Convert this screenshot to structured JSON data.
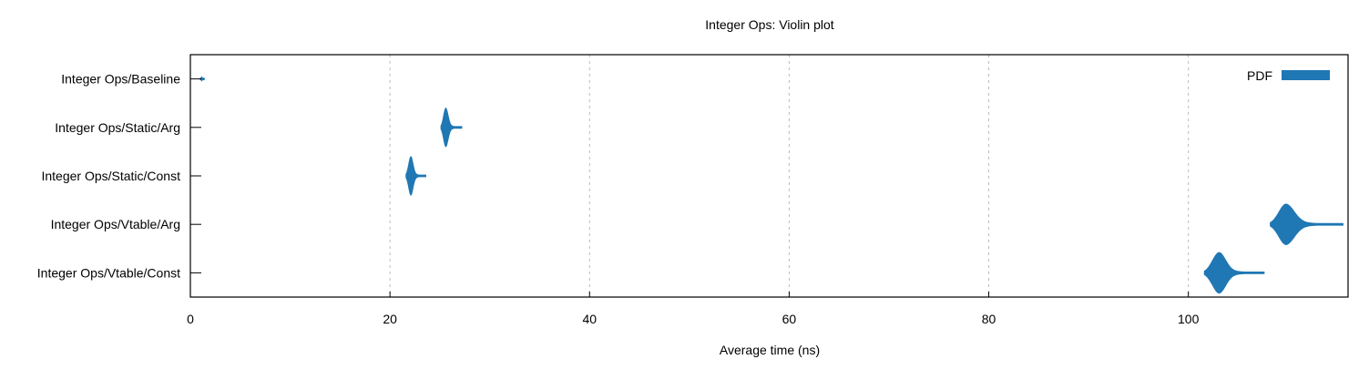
{
  "chart_data": {
    "type": "violin",
    "title": "Integer Ops: Violin plot",
    "xlabel": "Average time (ns)",
    "ylabel": "",
    "xlim": [
      0,
      116
    ],
    "xticks": [
      0,
      20,
      40,
      60,
      80,
      100
    ],
    "grid": {
      "x": true,
      "y": false,
      "style": "dashed"
    },
    "legend": {
      "position": "top-right",
      "entries": [
        "PDF"
      ]
    },
    "series_color": "#1f77b4",
    "categories": [
      "Integer Ops/Baseline",
      "Integer Ops/Static/Arg",
      "Integer Ops/Static/Const",
      "Integer Ops/Vtable/Arg",
      "Integer Ops/Vtable/Const"
    ],
    "distributions": [
      {
        "name": "Integer Ops/Baseline",
        "min": 1.0,
        "mode": 1.15,
        "max": 1.4,
        "peak": 0.1
      },
      {
        "name": "Integer Ops/Static/Arg",
        "min": 25.1,
        "mode": 25.6,
        "max": 27.2,
        "peak": 0.95
      },
      {
        "name": "Integer Ops/Static/Const",
        "min": 21.6,
        "mode": 22.1,
        "max": 23.6,
        "peak": 0.95
      },
      {
        "name": "Integer Ops/Vtable/Arg",
        "min": 108.2,
        "mode": 109.8,
        "max": 115.5,
        "peak": 1.0
      },
      {
        "name": "Integer Ops/Vtable/Const",
        "min": 101.6,
        "mode": 103.1,
        "max": 107.6,
        "peak": 1.0
      }
    ]
  }
}
